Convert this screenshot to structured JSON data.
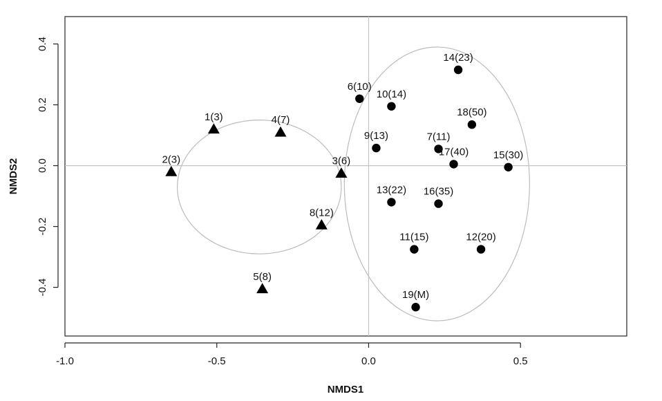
{
  "chart_data": {
    "type": "scatter",
    "xlabel": "NMDS1",
    "ylabel": "NMDS2",
    "xlim": [
      -1.0,
      0.85
    ],
    "ylim": [
      -0.56,
      0.49
    ],
    "x_ticks": [
      {
        "value": -1.0,
        "label": "-1.0"
      },
      {
        "value": -0.5,
        "label": "-0.5"
      },
      {
        "value": 0.0,
        "label": "0.0"
      },
      {
        "value": 0.5,
        "label": "0.5"
      }
    ],
    "y_ticks": [
      {
        "value": -0.4,
        "label": "-0.4"
      },
      {
        "value": -0.2,
        "label": "-0.2"
      },
      {
        "value": 0.0,
        "label": "0.0"
      },
      {
        "value": 0.2,
        "label": "0.2"
      },
      {
        "value": 0.4,
        "label": "0.4"
      }
    ],
    "reference_lines": {
      "x": 0.0,
      "y": 0.0
    },
    "groups": [
      {
        "marker": "triangle",
        "color": "#000000",
        "ellipse": {
          "cx": -0.36,
          "cy": -0.07,
          "rx": 0.27,
          "ry": 0.22
        },
        "points": [
          {
            "label": "1(3)",
            "x": -0.51,
            "y": 0.12
          },
          {
            "label": "2(3)",
            "x": -0.65,
            "y": -0.02
          },
          {
            "label": "3(6)",
            "x": -0.09,
            "y": -0.025
          },
          {
            "label": "4(7)",
            "x": -0.29,
            "y": 0.11
          },
          {
            "label": "5(8)",
            "x": -0.35,
            "y": -0.405
          },
          {
            "label": "8(12)",
            "x": -0.155,
            "y": -0.195
          }
        ]
      },
      {
        "marker": "circle",
        "color": "#000000",
        "ellipse": {
          "cx": 0.225,
          "cy": -0.06,
          "rx": 0.305,
          "ry": 0.45
        },
        "points": [
          {
            "label": "6(10)",
            "x": -0.03,
            "y": 0.22
          },
          {
            "label": "7(11)",
            "x": 0.23,
            "y": 0.055
          },
          {
            "label": "9(13)",
            "x": 0.025,
            "y": 0.058
          },
          {
            "label": "10(14)",
            "x": 0.075,
            "y": 0.195
          },
          {
            "label": "11(15)",
            "x": 0.15,
            "y": -0.275
          },
          {
            "label": "12(20)",
            "x": 0.37,
            "y": -0.275
          },
          {
            "label": "13(22)",
            "x": 0.075,
            "y": -0.12
          },
          {
            "label": "14(23)",
            "x": 0.295,
            "y": 0.315
          },
          {
            "label": "15(30)",
            "x": 0.46,
            "y": -0.005
          },
          {
            "label": "16(35)",
            "x": 0.23,
            "y": -0.125
          },
          {
            "label": "17(40)",
            "x": 0.28,
            "y": 0.005
          },
          {
            "label": "18(50)",
            "x": 0.34,
            "y": 0.135
          },
          {
            "label": "19(M)",
            "x": 0.155,
            "y": -0.465
          }
        ]
      }
    ],
    "colors": {
      "ellipse": "#bbbbbb",
      "reference_line": "#c4c4c4",
      "frame": "#222222"
    }
  }
}
